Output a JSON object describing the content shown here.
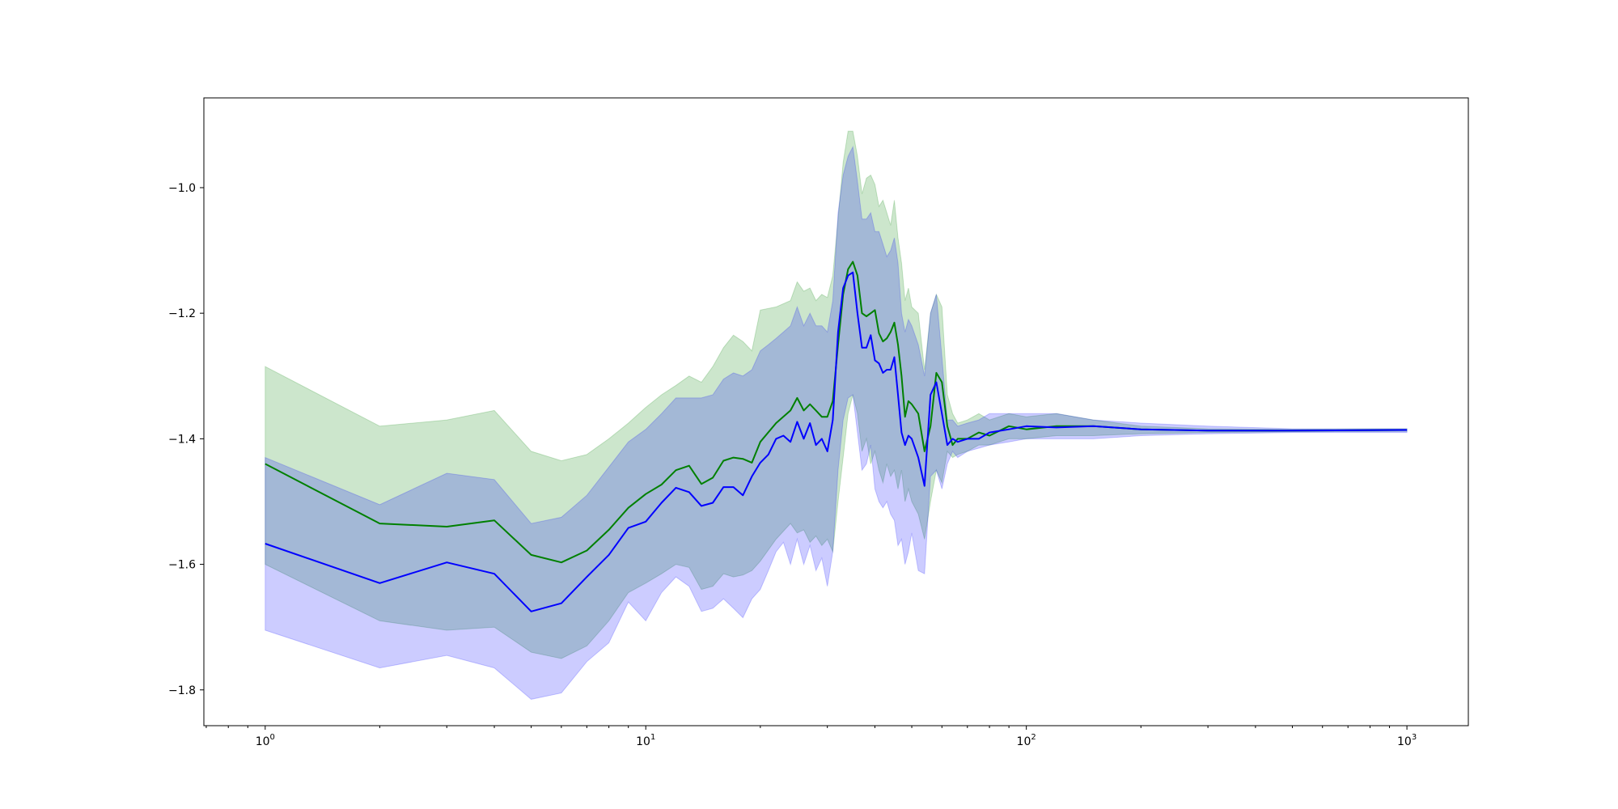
{
  "chart_data": {
    "type": "line",
    "title": "",
    "xlabel": "",
    "ylabel": "",
    "x_scale": "log",
    "xlim": [
      0.69,
      1450
    ],
    "ylim": [
      -1.857,
      -0.857
    ],
    "grid": false,
    "legend": "none",
    "x_ticks": [
      {
        "value": 1,
        "base": "10",
        "exp": "0"
      },
      {
        "value": 10,
        "base": "10",
        "exp": "1"
      },
      {
        "value": 100,
        "base": "10",
        "exp": "2"
      },
      {
        "value": 1000,
        "base": "10",
        "exp": "3"
      }
    ],
    "y_ticks": [
      {
        "value": -1.8,
        "label": "−1.8"
      },
      {
        "value": -1.6,
        "label": "−1.6"
      },
      {
        "value": -1.4,
        "label": "−1.4"
      },
      {
        "value": -1.2,
        "label": "−1.2"
      },
      {
        "value": -1.0,
        "label": "−1.0"
      }
    ],
    "series": [
      {
        "color": "#008000",
        "band_color": "#008000",
        "band_opacity": 0.2,
        "x": [
          1,
          2,
          3,
          4,
          5,
          6,
          7,
          8,
          9,
          10,
          11,
          12,
          13,
          14,
          15,
          16,
          17,
          18,
          19,
          20,
          22,
          24,
          25,
          26,
          27,
          28,
          29,
          30,
          31,
          32,
          33,
          34,
          35,
          36,
          37,
          38,
          39,
          40,
          41,
          42,
          43,
          44,
          45,
          46,
          47,
          48,
          49,
          50,
          52,
          54,
          56,
          58,
          60,
          62,
          64,
          66,
          70,
          75,
          80,
          90,
          100,
          120,
          150,
          200,
          300,
          500,
          1000
        ],
        "y": [
          -1.44,
          -1.535,
          -1.54,
          -1.53,
          -1.585,
          -1.597,
          -1.578,
          -1.545,
          -1.51,
          -1.488,
          -1.473,
          -1.45,
          -1.443,
          -1.472,
          -1.462,
          -1.435,
          -1.43,
          -1.432,
          -1.438,
          -1.405,
          -1.375,
          -1.355,
          -1.335,
          -1.355,
          -1.345,
          -1.355,
          -1.365,
          -1.365,
          -1.34,
          -1.25,
          -1.17,
          -1.13,
          -1.118,
          -1.14,
          -1.2,
          -1.205,
          -1.2,
          -1.195,
          -1.232,
          -1.245,
          -1.24,
          -1.23,
          -1.215,
          -1.25,
          -1.3,
          -1.365,
          -1.34,
          -1.345,
          -1.36,
          -1.42,
          -1.38,
          -1.295,
          -1.31,
          -1.38,
          -1.41,
          -1.4,
          -1.4,
          -1.39,
          -1.395,
          -1.38,
          -1.385,
          -1.38,
          -1.38,
          -1.385,
          -1.387,
          -1.387,
          -1.386
        ],
        "lower": [
          -1.6,
          -1.69,
          -1.705,
          -1.7,
          -1.74,
          -1.75,
          -1.73,
          -1.69,
          -1.645,
          -1.63,
          -1.615,
          -1.6,
          -1.605,
          -1.64,
          -1.635,
          -1.615,
          -1.62,
          -1.617,
          -1.61,
          -1.595,
          -1.56,
          -1.535,
          -1.55,
          -1.545,
          -1.565,
          -1.555,
          -1.57,
          -1.56,
          -1.58,
          -1.5,
          -1.43,
          -1.36,
          -1.33,
          -1.36,
          -1.42,
          -1.4,
          -1.44,
          -1.42,
          -1.45,
          -1.47,
          -1.44,
          -1.46,
          -1.45,
          -1.48,
          -1.45,
          -1.5,
          -1.48,
          -1.5,
          -1.52,
          -1.56,
          -1.5,
          -1.45,
          -1.47,
          -1.42,
          -1.43,
          -1.425,
          -1.42,
          -1.41,
          -1.41,
          -1.4,
          -1.4,
          -1.395,
          -1.395,
          -1.392,
          -1.39,
          -1.389,
          -1.388
        ],
        "upper": [
          -1.285,
          -1.38,
          -1.37,
          -1.355,
          -1.42,
          -1.435,
          -1.425,
          -1.4,
          -1.375,
          -1.35,
          -1.33,
          -1.315,
          -1.3,
          -1.31,
          -1.285,
          -1.255,
          -1.235,
          -1.245,
          -1.26,
          -1.195,
          -1.19,
          -1.18,
          -1.15,
          -1.165,
          -1.16,
          -1.18,
          -1.17,
          -1.175,
          -1.14,
          -1.05,
          -0.96,
          -0.91,
          -0.91,
          -0.95,
          -1.01,
          -0.985,
          -0.98,
          -0.995,
          -1.03,
          -1.02,
          -1.04,
          -1.06,
          -1.02,
          -1.08,
          -1.12,
          -1.18,
          -1.16,
          -1.19,
          -1.2,
          -1.29,
          -1.2,
          -1.17,
          -1.19,
          -1.33,
          -1.36,
          -1.375,
          -1.37,
          -1.36,
          -1.37,
          -1.36,
          -1.365,
          -1.36,
          -1.37,
          -1.38,
          -1.384,
          -1.385,
          -1.384
        ]
      },
      {
        "color": "#0000ff",
        "band_color": "#0000ff",
        "band_opacity": 0.2,
        "x": [
          1,
          2,
          3,
          4,
          5,
          6,
          7,
          8,
          9,
          10,
          11,
          12,
          13,
          14,
          15,
          16,
          17,
          18,
          19,
          20,
          21,
          22,
          23,
          24,
          25,
          26,
          27,
          28,
          29,
          30,
          31,
          32,
          33,
          34,
          35,
          36,
          37,
          38,
          39,
          40,
          41,
          42,
          43,
          44,
          45,
          46,
          47,
          48,
          49,
          50,
          52,
          54,
          56,
          58,
          60,
          62,
          64,
          66,
          70,
          75,
          80,
          90,
          100,
          120,
          150,
          200,
          300,
          500,
          1000
        ],
        "y": [
          -1.567,
          -1.63,
          -1.597,
          -1.615,
          -1.675,
          -1.662,
          -1.62,
          -1.585,
          -1.542,
          -1.532,
          -1.502,
          -1.478,
          -1.485,
          -1.507,
          -1.502,
          -1.477,
          -1.477,
          -1.49,
          -1.46,
          -1.438,
          -1.425,
          -1.4,
          -1.395,
          -1.405,
          -1.373,
          -1.4,
          -1.375,
          -1.41,
          -1.4,
          -1.42,
          -1.37,
          -1.23,
          -1.16,
          -1.14,
          -1.135,
          -1.2,
          -1.255,
          -1.255,
          -1.235,
          -1.275,
          -1.28,
          -1.295,
          -1.29,
          -1.29,
          -1.27,
          -1.33,
          -1.39,
          -1.41,
          -1.395,
          -1.4,
          -1.43,
          -1.475,
          -1.33,
          -1.31,
          -1.36,
          -1.41,
          -1.4,
          -1.405,
          -1.4,
          -1.4,
          -1.39,
          -1.385,
          -1.38,
          -1.382,
          -1.38,
          -1.385,
          -1.387,
          -1.387,
          -1.386
        ],
        "lower": [
          -1.705,
          -1.765,
          -1.745,
          -1.765,
          -1.815,
          -1.805,
          -1.755,
          -1.725,
          -1.66,
          -1.69,
          -1.645,
          -1.62,
          -1.635,
          -1.675,
          -1.67,
          -1.655,
          -1.67,
          -1.685,
          -1.655,
          -1.64,
          -1.61,
          -1.58,
          -1.565,
          -1.6,
          -1.56,
          -1.6,
          -1.57,
          -1.61,
          -1.59,
          -1.635,
          -1.58,
          -1.45,
          -1.37,
          -1.335,
          -1.33,
          -1.39,
          -1.45,
          -1.44,
          -1.41,
          -1.48,
          -1.5,
          -1.51,
          -1.5,
          -1.52,
          -1.53,
          -1.57,
          -1.56,
          -1.6,
          -1.58,
          -1.55,
          -1.61,
          -1.615,
          -1.46,
          -1.45,
          -1.48,
          -1.44,
          -1.42,
          -1.43,
          -1.42,
          -1.415,
          -1.41,
          -1.405,
          -1.4,
          -1.4,
          -1.4,
          -1.395,
          -1.392,
          -1.39,
          -1.39
        ],
        "upper": [
          -1.43,
          -1.505,
          -1.455,
          -1.465,
          -1.535,
          -1.525,
          -1.49,
          -1.445,
          -1.405,
          -1.385,
          -1.36,
          -1.335,
          -1.335,
          -1.335,
          -1.33,
          -1.305,
          -1.295,
          -1.3,
          -1.29,
          -1.26,
          -1.25,
          -1.24,
          -1.23,
          -1.22,
          -1.19,
          -1.22,
          -1.2,
          -1.22,
          -1.22,
          -1.23,
          -1.18,
          -1.04,
          -0.98,
          -0.95,
          -0.935,
          -0.99,
          -1.05,
          -1.05,
          -1.04,
          -1.07,
          -1.07,
          -1.09,
          -1.11,
          -1.1,
          -1.08,
          -1.12,
          -1.2,
          -1.23,
          -1.21,
          -1.22,
          -1.25,
          -1.3,
          -1.2,
          -1.17,
          -1.27,
          -1.37,
          -1.37,
          -1.38,
          -1.375,
          -1.37,
          -1.36,
          -1.36,
          -1.36,
          -1.36,
          -1.37,
          -1.375,
          -1.38,
          -1.384,
          -1.384
        ]
      }
    ]
  }
}
